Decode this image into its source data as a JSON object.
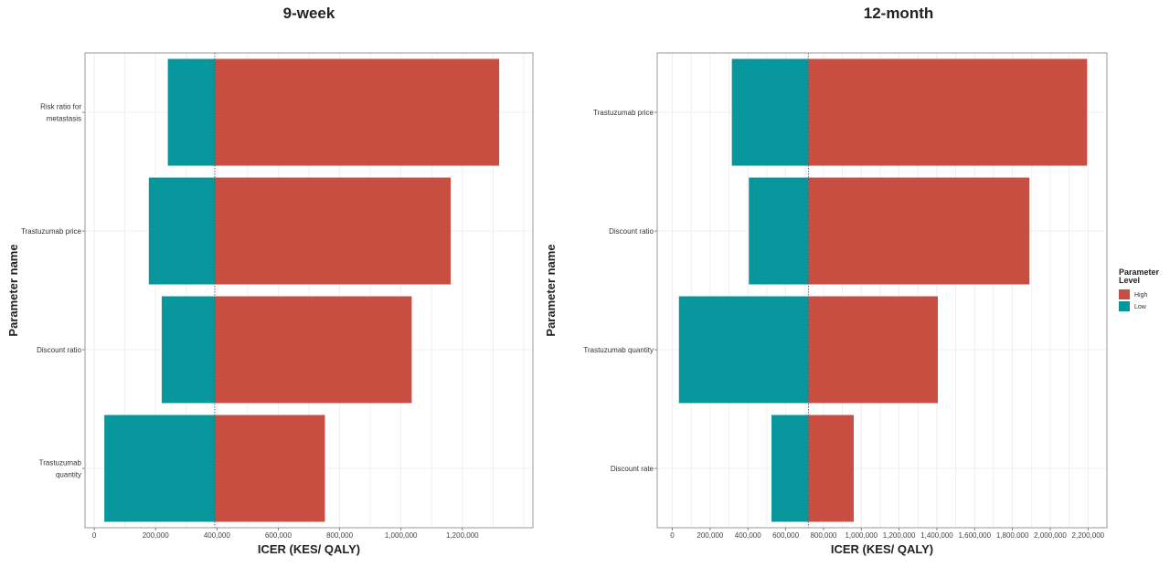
{
  "chart_data": [
    {
      "type": "bar",
      "orientation": "horizontal",
      "title": "9-week",
      "xlabel": "ICER (KES/ QALY)",
      "ylabel": "Parameter name",
      "base": 393000,
      "xlim": [
        -30000,
        1430000
      ],
      "xticks": [
        0,
        200000,
        400000,
        600000,
        800000,
        1000000,
        1200000
      ],
      "xtick_labels": [
        "0",
        "200,000",
        "400,000",
        "600,000",
        "800,000",
        "1,000,000",
        "1,200,000"
      ],
      "categories": [
        [
          "Risk ratio for",
          "metastasis"
        ],
        [
          "Trastuzumab  price"
        ],
        [
          "Discount ratio"
        ],
        [
          "Trastuzumab",
          "quantity"
        ]
      ],
      "series": [
        {
          "name": "High",
          "values": [
            1320000,
            1162000,
            1035000,
            752000
          ]
        },
        {
          "name": "Low",
          "values": [
            240000,
            178000,
            220000,
            33000
          ]
        }
      ],
      "grid": true
    },
    {
      "type": "bar",
      "orientation": "horizontal",
      "title": "12-month",
      "xlabel": "ICER (KES/ QALY)",
      "ylabel": "Parameter name",
      "base": 720000,
      "xlim": [
        -80000,
        2300000
      ],
      "xticks": [
        0,
        200000,
        400000,
        600000,
        800000,
        1000000,
        1200000,
        1400000,
        1600000,
        1800000,
        2000000,
        2200000
      ],
      "xtick_labels": [
        "0",
        "200,000",
        "400,000",
        "600,000",
        "800,000",
        "1,000,000",
        "1,200,000",
        "1,400,000",
        "1,600,000",
        "1,800,000",
        "2,000,000",
        "2,200,000"
      ],
      "categories": [
        [
          "Trastuzumab  price"
        ],
        [
          "Discount ratio"
        ],
        [
          "Trastuzumab  quantity"
        ],
        [
          "Discount rate"
        ]
      ],
      "series": [
        {
          "name": "High",
          "values": [
            2195000,
            1890000,
            1405000,
            960000
          ]
        },
        {
          "name": "Low",
          "values": [
            315000,
            405000,
            35000,
            525000
          ]
        }
      ],
      "grid": true
    }
  ],
  "legend": {
    "title": [
      "Parameter",
      "Level"
    ],
    "items": [
      {
        "label": "High",
        "color": "#C84E42"
      },
      {
        "label": "Low",
        "color": "#06969B"
      }
    ],
    "placement": "right"
  },
  "colors": {
    "high": "#C84E42",
    "low": "#06969B",
    "panel_border": "#9a9a9a",
    "grid": "#ececec",
    "base_line": "#555555"
  }
}
